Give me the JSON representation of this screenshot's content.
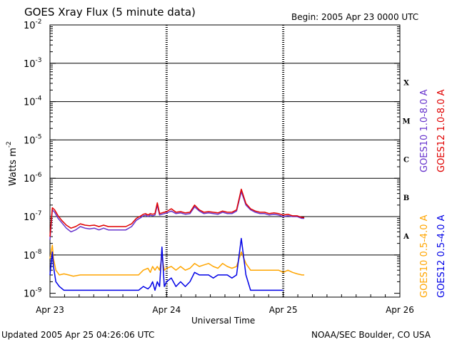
{
  "header": {
    "title": "GOES Xray Flux (5 minute data)",
    "begin": "Begin:  2005 Apr 23 0000 UTC"
  },
  "footer": {
    "updated": "Updated 2005 Apr 25 04:26:06 UTC",
    "credit": "NOAA/SEC Boulder, CO USA"
  },
  "colors": {
    "goes10_long": "#6633cc",
    "goes12_long": "#e00000",
    "goes10_short": "#ffa500",
    "goes12_short": "#0000e6",
    "threshold": "#000000"
  },
  "chart_data": {
    "type": "line",
    "title": "GOES Xray Flux (5 minute data)",
    "xlabel": "Universal Time",
    "ylabel_main": "Watts m",
    "ylabel_exp": "-2",
    "x_unit": "days since 2005 Apr 23 00:00 UTC",
    "xlim": [
      0,
      3
    ],
    "yscale": "log",
    "ylim_exp": [
      -9.1,
      -2
    ],
    "x_ticks": [
      {
        "x": 0,
        "label": "Apr 23"
      },
      {
        "x": 1,
        "label": "Apr 24"
      },
      {
        "x": 2,
        "label": "Apr 25"
      },
      {
        "x": 3,
        "label": "Apr 26"
      }
    ],
    "y_ticks": [
      {
        "exp": -2,
        "label": "-2"
      },
      {
        "exp": -3,
        "label": "-3"
      },
      {
        "exp": -4,
        "label": "-4"
      },
      {
        "exp": -5,
        "label": "-5"
      },
      {
        "exp": -6,
        "label": "-6"
      },
      {
        "exp": -7,
        "label": "-7"
      },
      {
        "exp": -8,
        "label": "-8"
      },
      {
        "exp": -9,
        "label": "-9"
      }
    ],
    "flare_classes": [
      {
        "label": "X",
        "exp": -3.5
      },
      {
        "label": "M",
        "exp": -4.5
      },
      {
        "label": "C",
        "exp": -5.5
      },
      {
        "label": "B",
        "exp": -6.5
      },
      {
        "label": "A",
        "exp": -7.5
      }
    ],
    "threshold_lines": [
      -3,
      -4,
      -5,
      -6,
      -7,
      -8
    ],
    "series": [
      {
        "name": "GOES10 1.0-8.0 A",
        "color": "#6633cc",
        "x": [
          0.0,
          0.02,
          0.04,
          0.07,
          0.1,
          0.14,
          0.18,
          0.22,
          0.26,
          0.3,
          0.34,
          0.38,
          0.42,
          0.46,
          0.5,
          0.55,
          0.6,
          0.65,
          0.7,
          0.74,
          0.78,
          0.8,
          0.82,
          0.84,
          0.86,
          0.88,
          0.9,
          0.92,
          0.94,
          0.96,
          0.98,
          1.0,
          1.04,
          1.08,
          1.12,
          1.16,
          1.2,
          1.24,
          1.28,
          1.32,
          1.36,
          1.4,
          1.44,
          1.48,
          1.52,
          1.56,
          1.6,
          1.64,
          1.68,
          1.72,
          1.76,
          1.8,
          1.84,
          1.88,
          1.92,
          1.96,
          2.0,
          2.04,
          2.08,
          2.12,
          2.16,
          2.18
        ],
        "y": [
          2.5e-08,
          1.5e-07,
          1.3e-07,
          9e-08,
          7e-08,
          5e-08,
          4e-08,
          4.5e-08,
          5.5e-08,
          5e-08,
          4.8e-08,
          5e-08,
          4.5e-08,
          5e-08,
          4.5e-08,
          4.5e-08,
          4.5e-08,
          4.5e-08,
          5.5e-08,
          8e-08,
          9.5e-08,
          1.05e-07,
          1.1e-07,
          1e-07,
          1.1e-07,
          1.05e-07,
          1.1e-07,
          2e-07,
          1.1e-07,
          1.15e-07,
          1.2e-07,
          1.25e-07,
          1.4e-07,
          1.2e-07,
          1.25e-07,
          1.15e-07,
          1.2e-07,
          1.8e-07,
          1.4e-07,
          1.2e-07,
          1.25e-07,
          1.2e-07,
          1.15e-07,
          1.3e-07,
          1.2e-07,
          1.2e-07,
          1.4e-07,
          4.5e-07,
          2e-07,
          1.5e-07,
          1.3e-07,
          1.2e-07,
          1.2e-07,
          1.1e-07,
          1.15e-07,
          1.1e-07,
          1e-07,
          1.05e-07,
          1e-07,
          1e-07,
          9e-08,
          9e-08
        ]
      },
      {
        "name": "GOES12 1.0-8.0 A",
        "color": "#e00000",
        "x": [
          0.0,
          0.02,
          0.04,
          0.07,
          0.1,
          0.14,
          0.18,
          0.22,
          0.26,
          0.3,
          0.34,
          0.38,
          0.42,
          0.46,
          0.5,
          0.55,
          0.6,
          0.65,
          0.7,
          0.74,
          0.78,
          0.8,
          0.82,
          0.84,
          0.86,
          0.88,
          0.9,
          0.92,
          0.94,
          0.96,
          0.98,
          1.0,
          1.04,
          1.08,
          1.12,
          1.16,
          1.2,
          1.24,
          1.28,
          1.32,
          1.36,
          1.4,
          1.44,
          1.48,
          1.52,
          1.56,
          1.6,
          1.64,
          1.68,
          1.72,
          1.76,
          1.8,
          1.84,
          1.88,
          1.92,
          1.96,
          2.0,
          2.04,
          2.08,
          2.12,
          2.16,
          2.18
        ],
        "y": [
          3e-08,
          1.7e-07,
          1.5e-07,
          1.05e-07,
          8e-08,
          6e-08,
          5e-08,
          5.5e-08,
          6.5e-08,
          6e-08,
          5.8e-08,
          6e-08,
          5.5e-08,
          6e-08,
          5.5e-08,
          5.5e-08,
          5.5e-08,
          5.5e-08,
          6.5e-08,
          9e-08,
          1.05e-07,
          1.15e-07,
          1.2e-07,
          1.1e-07,
          1.2e-07,
          1.15e-07,
          1.2e-07,
          2.3e-07,
          1.2e-07,
          1.25e-07,
          1.3e-07,
          1.35e-07,
          1.6e-07,
          1.3e-07,
          1.35e-07,
          1.25e-07,
          1.3e-07,
          2e-07,
          1.5e-07,
          1.3e-07,
          1.35e-07,
          1.3e-07,
          1.25e-07,
          1.4e-07,
          1.3e-07,
          1.3e-07,
          1.5e-07,
          5.2e-07,
          2.2e-07,
          1.6e-07,
          1.4e-07,
          1.3e-07,
          1.3e-07,
          1.2e-07,
          1.25e-07,
          1.2e-07,
          1.1e-07,
          1.15e-07,
          1.05e-07,
          1.05e-07,
          9.5e-08,
          9.5e-08
        ]
      },
      {
        "name": "GOES10 0.5-4.0 A",
        "color": "#ffa500",
        "x": [
          0.0,
          0.02,
          0.03,
          0.05,
          0.08,
          0.12,
          0.16,
          0.2,
          0.26,
          0.32,
          0.4,
          0.5,
          0.6,
          0.7,
          0.76,
          0.8,
          0.84,
          0.86,
          0.88,
          0.9,
          0.92,
          0.94,
          0.96,
          0.98,
          1.0,
          1.04,
          1.08,
          1.12,
          1.16,
          1.2,
          1.24,
          1.28,
          1.32,
          1.36,
          1.4,
          1.44,
          1.48,
          1.52,
          1.56,
          1.6,
          1.64,
          1.68,
          1.72,
          1.76,
          1.8,
          1.84,
          1.88,
          1.92,
          1.96,
          2.0,
          2.04,
          2.08,
          2.12,
          2.16,
          2.18
        ],
        "y": [
          8e-09,
          1.8e-08,
          8e-09,
          4e-09,
          3e-09,
          3.2e-09,
          3e-09,
          2.8e-09,
          3e-09,
          3e-09,
          3e-09,
          3e-09,
          3e-09,
          3e-09,
          3e-09,
          4e-09,
          4.5e-09,
          3.5e-09,
          5e-09,
          4e-09,
          5e-09,
          4e-09,
          9e-09,
          4e-09,
          4.5e-09,
          5e-09,
          4e-09,
          5e-09,
          4e-09,
          4.5e-09,
          6e-09,
          5e-09,
          5.5e-09,
          6e-09,
          5e-09,
          4.5e-09,
          6e-09,
          5e-09,
          4.5e-09,
          5e-09,
          1.2e-08,
          6e-09,
          4e-09,
          4e-09,
          4e-09,
          4e-09,
          4e-09,
          4e-09,
          4e-09,
          3.5e-09,
          4e-09,
          3.5e-09,
          3.2e-09,
          3e-09,
          3e-09
        ]
      },
      {
        "name": "GOES12 0.5-4.0 A",
        "color": "#0000e6",
        "x": [
          0.0,
          0.02,
          0.03,
          0.05,
          0.08,
          0.12,
          0.16,
          0.2,
          0.26,
          0.3,
          0.4,
          0.5,
          0.6,
          0.7,
          0.76,
          0.8,
          0.84,
          0.86,
          0.88,
          0.9,
          0.92,
          0.94,
          0.96,
          0.98,
          1.0,
          1.04,
          1.08,
          1.12,
          1.16,
          1.2,
          1.24,
          1.28,
          1.32,
          1.36,
          1.4,
          1.44,
          1.48,
          1.52,
          1.56,
          1.6,
          1.64,
          1.68,
          1.72,
          1.76,
          1.8,
          1.84,
          1.88,
          1.92,
          1.96,
          2.0
        ],
        "y": [
          3e-09,
          1.2e-08,
          5e-09,
          2e-09,
          1.5e-09,
          1.2e-09,
          1.2e-09,
          1.2e-09,
          1.2e-09,
          1.2e-09,
          1.2e-09,
          1.2e-09,
          1.2e-09,
          1.2e-09,
          1.2e-09,
          1.5e-09,
          1.3e-09,
          1.5e-09,
          2e-09,
          1.2e-09,
          2e-09,
          1.5e-09,
          1.6e-08,
          1.5e-09,
          2e-09,
          2.5e-09,
          1.5e-09,
          2e-09,
          1.5e-09,
          2e-09,
          3.5e-09,
          3e-09,
          3e-09,
          3e-09,
          2.5e-09,
          3e-09,
          3e-09,
          3e-09,
          2.5e-09,
          3e-09,
          2.7e-08,
          3e-09,
          1.2e-09,
          1.2e-09,
          1.2e-09,
          1.2e-09,
          1.2e-09,
          1.2e-09,
          1.2e-09,
          1.2e-09
        ]
      }
    ],
    "legend": [
      {
        "text": "GOES10 1.0-8.0 A",
        "color": "#6633cc"
      },
      {
        "text": "GOES12 1.0-8.0 A",
        "color": "#e00000"
      },
      {
        "text": "GOES10 0.5-4.0 A",
        "color": "#ffa500"
      },
      {
        "text": "GOES12 0.5-4.0 A",
        "color": "#0000e6"
      }
    ]
  }
}
